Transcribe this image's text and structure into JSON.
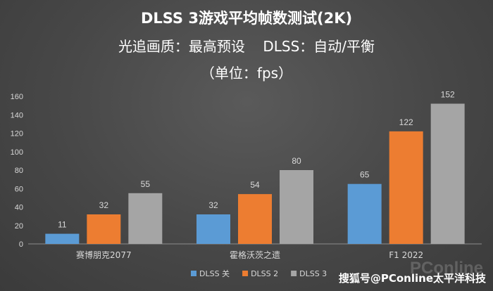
{
  "chart_data": {
    "type": "bar",
    "title": "DLSS 3游戏平均帧数测试(2K)",
    "subtitle": "光追画质：最高预设    DLSS：自动/平衡",
    "unit_note": "（单位：fps）",
    "categories": [
      "赛博朋克2077",
      "霍格沃茨之遗",
      "F1 2022"
    ],
    "series": [
      {
        "name": "DLSS 关",
        "color": "#5b9bd5",
        "values": [
          11,
          32,
          65
        ]
      },
      {
        "name": "DLSS 2",
        "color": "#ed7d31",
        "values": [
          32,
          54,
          122
        ]
      },
      {
        "name": "DLSS 3",
        "color": "#a5a5a5",
        "values": [
          55,
          80,
          152
        ]
      }
    ],
    "ylim": [
      0,
      160
    ],
    "yticks": [
      "0",
      "20",
      "40",
      "60",
      "80",
      "100",
      "120",
      "140",
      "160"
    ],
    "grid": false,
    "legend_position": "bottom"
  },
  "watermark": {
    "text": "搜狐号@PConline太平洋科技",
    "logo": "PConline"
  }
}
